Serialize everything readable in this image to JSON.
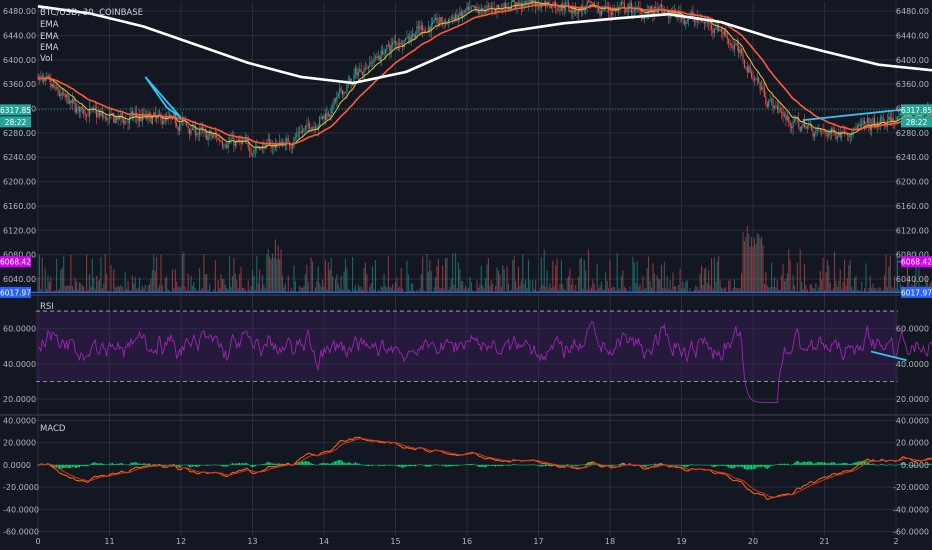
{
  "chart_data": [
    {
      "type": "candlestick",
      "title": "BTC/USD, 30, COINBASE",
      "legend": [
        "EMA",
        "EMA",
        "EMA",
        "Vol"
      ],
      "yticks": [
        "6480.00",
        "6440.00",
        "6400.00",
        "6360.00",
        "6320.00",
        "6280.00",
        "6240.00",
        "6200.00",
        "6160.00",
        "6120.00",
        "6080.00",
        "6040.00"
      ],
      "ylim": [
        6017,
        6495
      ],
      "xticks": [
        "0",
        "11",
        "12",
        "13",
        "14",
        "15",
        "16",
        "17",
        "18",
        "19",
        "20",
        "21",
        "2"
      ],
      "last_price": "6317.85",
      "countdown": "28:22",
      "level_magenta": "6068.42",
      "level_blue": "6017.97",
      "colors": {
        "up": "#26a69a",
        "down": "#ef5350",
        "ema_white": "#ffffff",
        "ema_red": "#ff5a36",
        "ema_yellow": "#e9c23f",
        "trendline": "#33c2f0",
        "magenta": "#d500f9",
        "blue": "#2962ff",
        "dark_red": "#b71c1c"
      },
      "ema_200": [
        [
          0,
          6488
        ],
        [
          1,
          6476
        ],
        [
          2,
          6455
        ],
        [
          3,
          6425
        ],
        [
          4,
          6395
        ],
        [
          5,
          6372
        ],
        [
          6,
          6362
        ],
        [
          7,
          6380
        ],
        [
          8,
          6418
        ],
        [
          9,
          6447
        ],
        [
          10,
          6460
        ],
        [
          11,
          6468
        ],
        [
          12,
          6475
        ],
        [
          13,
          6462
        ],
        [
          14,
          6435
        ],
        [
          15,
          6413
        ],
        [
          16,
          6392
        ],
        [
          17,
          6383
        ],
        [
          18,
          6377
        ],
        [
          19,
          6375
        ]
      ],
      "ema_mid": [
        [
          0,
          6370
        ],
        [
          0.5,
          6322
        ],
        [
          1,
          6302
        ],
        [
          1.5,
          6305
        ],
        [
          2,
          6298
        ],
        [
          2.3,
          6276
        ],
        [
          2.6,
          6268
        ],
        [
          3,
          6255
        ],
        [
          3.5,
          6265
        ],
        [
          4,
          6310
        ],
        [
          4.5,
          6385
        ],
        [
          5,
          6430
        ],
        [
          5.5,
          6458
        ],
        [
          6,
          6475
        ],
        [
          6.5,
          6490
        ],
        [
          7,
          6495
        ],
        [
          7.5,
          6485
        ],
        [
          8,
          6482
        ],
        [
          8.5,
          6480
        ],
        [
          9,
          6472
        ],
        [
          9.5,
          6455
        ],
        [
          9.8,
          6410
        ],
        [
          10.2,
          6335
        ],
        [
          10.5,
          6298
        ],
        [
          11,
          6280
        ],
        [
          11.5,
          6287
        ],
        [
          12,
          6302
        ],
        [
          12.5,
          6318
        ],
        [
          13,
          6326
        ],
        [
          13.5,
          6323
        ]
      ],
      "trendlines": [
        [
          [
            1.5,
            6372
          ],
          [
            1.8,
            6322
          ],
          [
            2,
            6305
          ],
          [
            1.5,
            6372
          ]
        ],
        [
          [
            10.7,
            6301
          ],
          [
            12.1,
            6327
          ]
        ]
      ],
      "rsi": {
        "label": "RSI",
        "yticks": [
          "60.0000",
          "40.0000",
          "20.0000"
        ],
        "upper_band": 70,
        "lower_band": 30,
        "ylim": [
          12,
          78
        ],
        "trendline": [
          [
            11.65,
            47
          ],
          [
            12.15,
            42
          ]
        ]
      },
      "macd": {
        "label": "MACD",
        "yticks": [
          "40.0000",
          "20.0000",
          "0.0000",
          "-20.0000",
          "-40.0000",
          "-60.0000"
        ],
        "ylim": [
          -64,
          44
        ]
      }
    }
  ]
}
